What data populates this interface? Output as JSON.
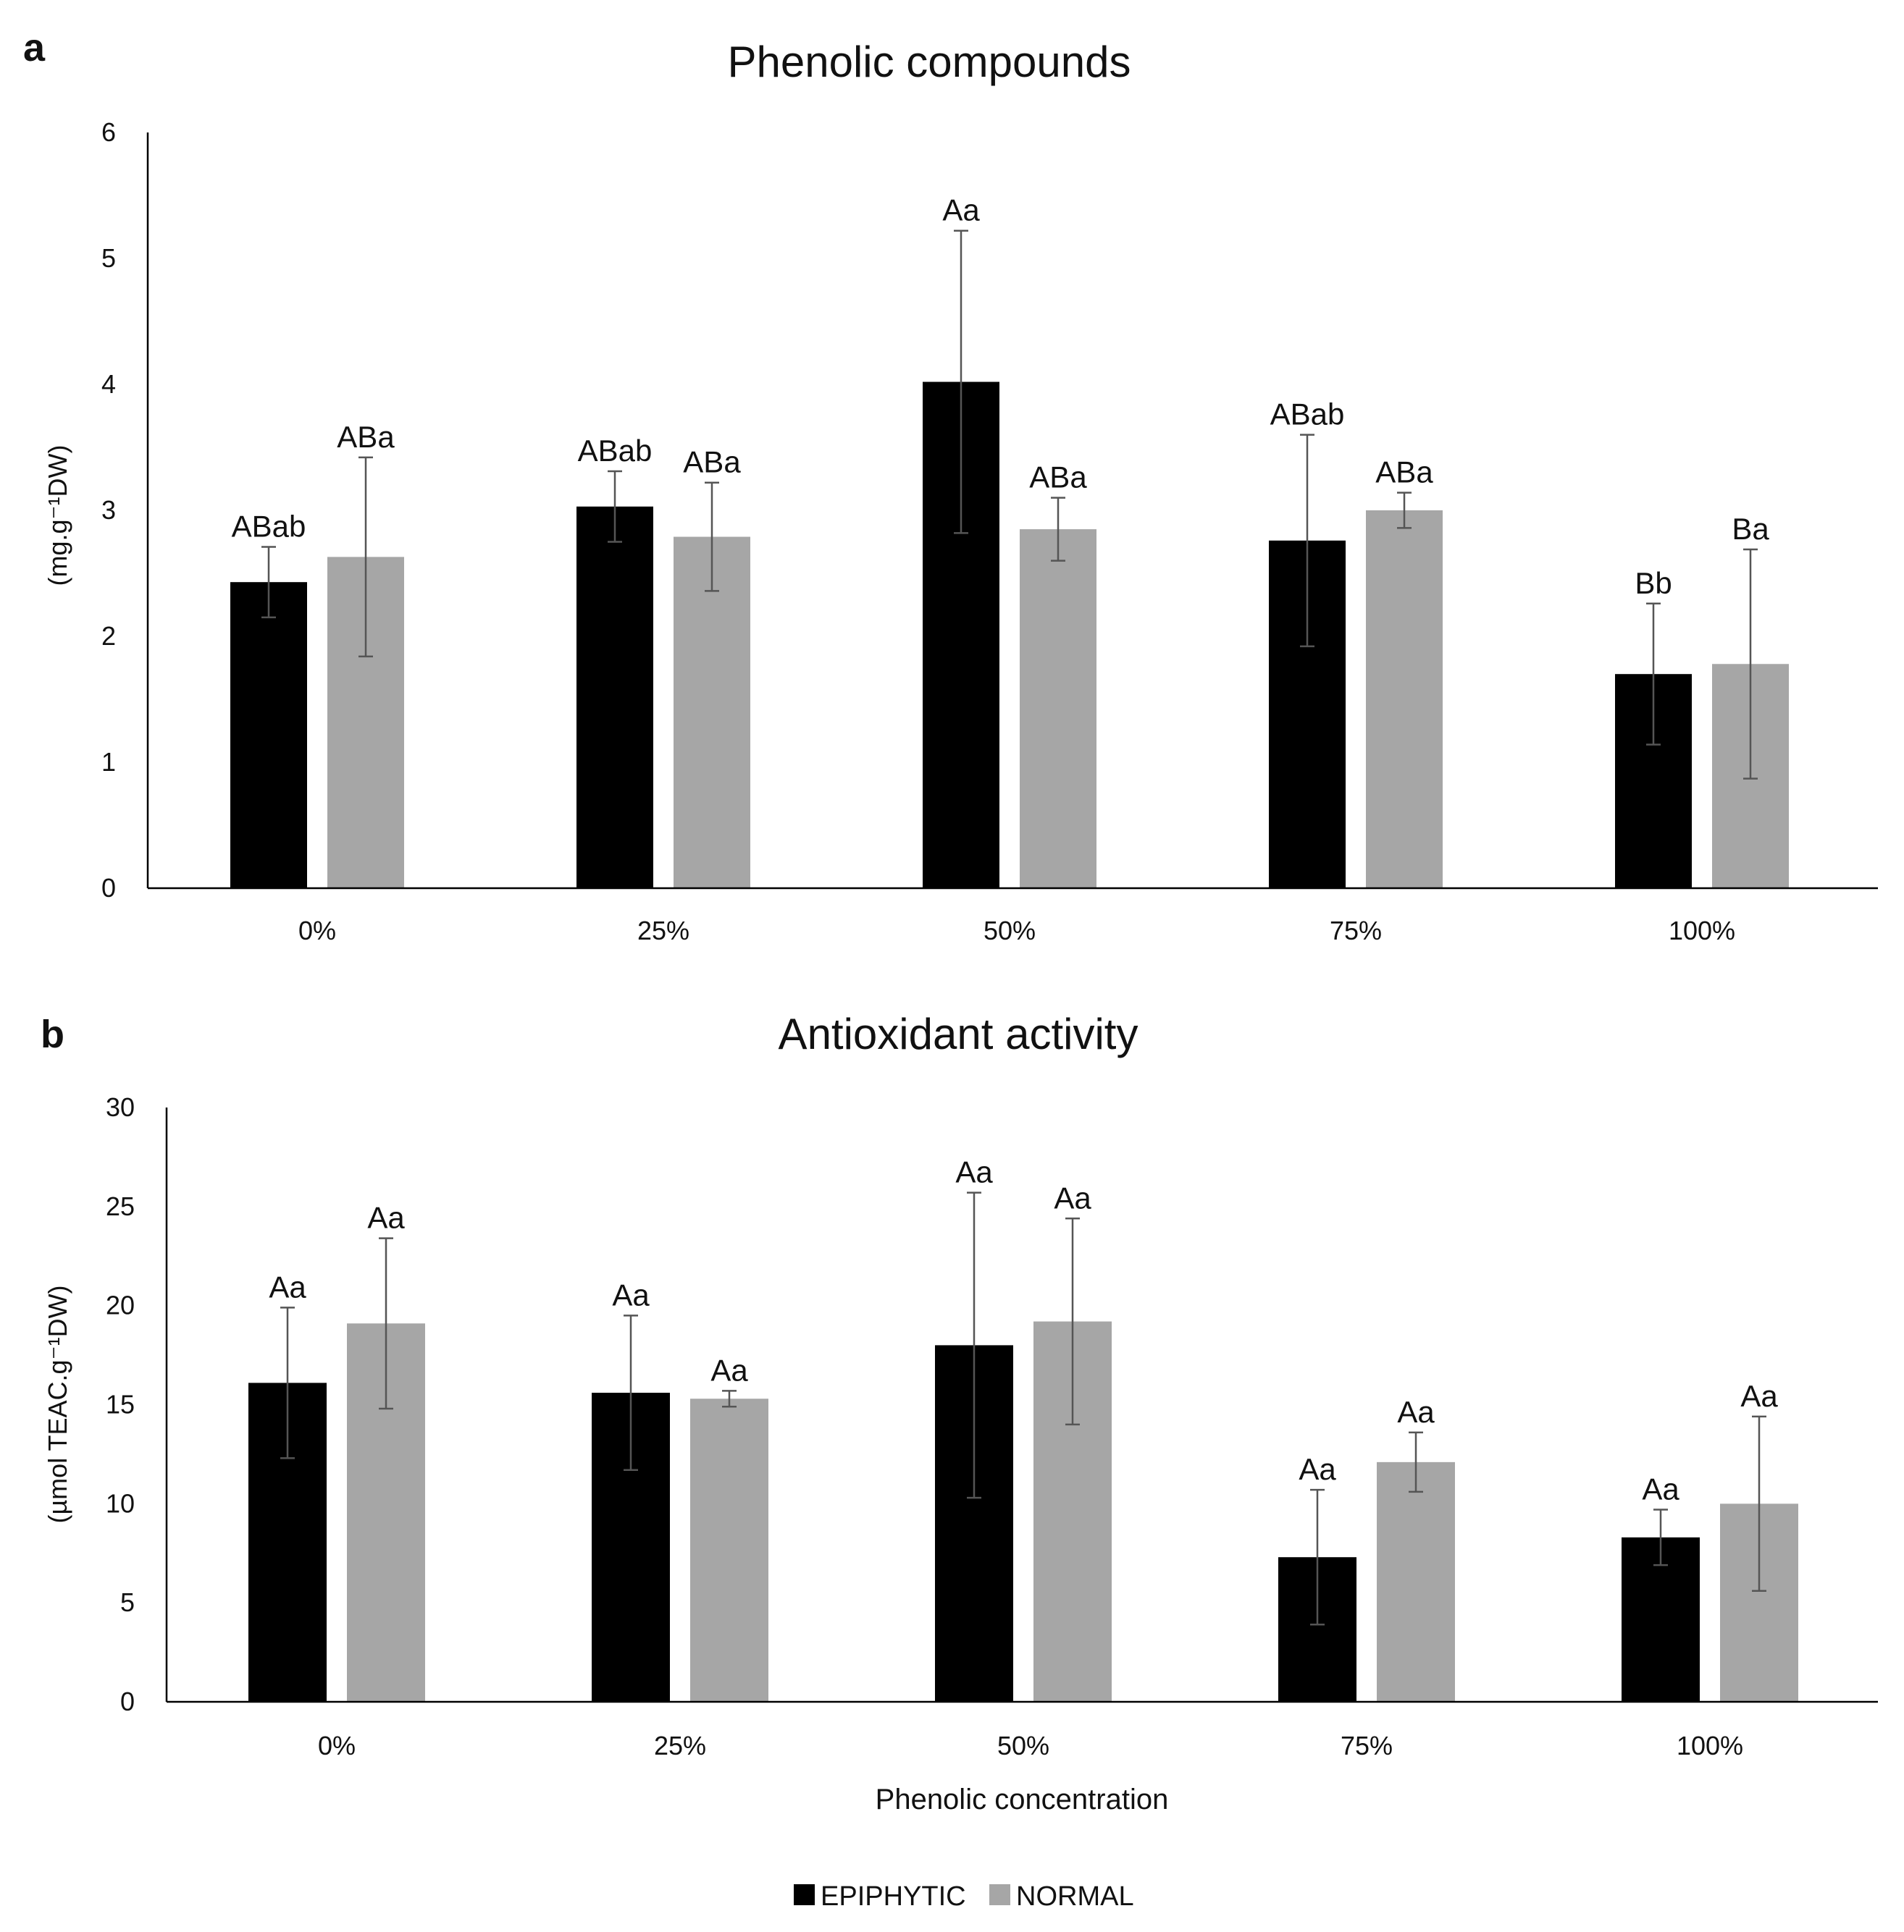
{
  "legend": {
    "items": [
      {
        "name": "EPIPHYTIC",
        "color": "#000000"
      },
      {
        "name": "NORMAL",
        "color": "#a6a6a6"
      }
    ]
  },
  "chart_data": [
    {
      "type": "bar",
      "panel": "a",
      "title": "Phenolic compounds",
      "ylabel": "(mg.g⁻¹DW)",
      "xlabel": "",
      "ylim": [
        0,
        6
      ],
      "yticks": [
        0,
        1,
        2,
        3,
        4,
        5,
        6
      ],
      "categories": [
        "0%",
        "25%",
        "50%",
        "75%",
        "100%"
      ],
      "series": [
        {
          "name": "EPIPHYTIC",
          "color": "#000000",
          "values": [
            2.43,
            3.03,
            4.02,
            2.76,
            1.7
          ],
          "errors": [
            0.28,
            0.28,
            1.2,
            0.84,
            0.56
          ],
          "labels": [
            "ABab",
            "ABab",
            "Aa",
            "ABab",
            "Bb"
          ]
        },
        {
          "name": "NORMAL",
          "color": "#a6a6a6",
          "values": [
            2.63,
            2.79,
            2.85,
            3.0,
            1.78
          ],
          "errors": [
            0.79,
            0.43,
            0.25,
            0.14,
            0.91
          ],
          "labels": [
            "ABa",
            "ABa",
            "ABa",
            "ABa",
            "Ba"
          ]
        }
      ]
    },
    {
      "type": "bar",
      "panel": "b",
      "title": "Antioxidant activity",
      "ylabel": "(µmol TEAC.g⁻¹DW)",
      "xlabel": "Phenolic concentration",
      "ylim": [
        0,
        30
      ],
      "yticks": [
        0,
        5,
        10,
        15,
        20,
        25,
        30
      ],
      "categories": [
        "0%",
        "25%",
        "50%",
        "75%",
        "100%"
      ],
      "series": [
        {
          "name": "EPIPHYTIC",
          "color": "#000000",
          "values": [
            16.1,
            15.6,
            18.0,
            7.3,
            8.3
          ],
          "errors": [
            3.8,
            3.9,
            7.7,
            3.4,
            1.4
          ],
          "labels": [
            "Aa",
            "Aa",
            "Aa",
            "Aa",
            "Aa"
          ]
        },
        {
          "name": "NORMAL",
          "color": "#a6a6a6",
          "values": [
            19.1,
            15.3,
            19.2,
            12.1,
            10.0
          ],
          "errors": [
            4.3,
            0.4,
            5.2,
            1.5,
            4.4
          ],
          "labels": [
            "Aa",
            "Aa",
            "Aa",
            "Aa",
            "Aa"
          ]
        }
      ]
    }
  ]
}
